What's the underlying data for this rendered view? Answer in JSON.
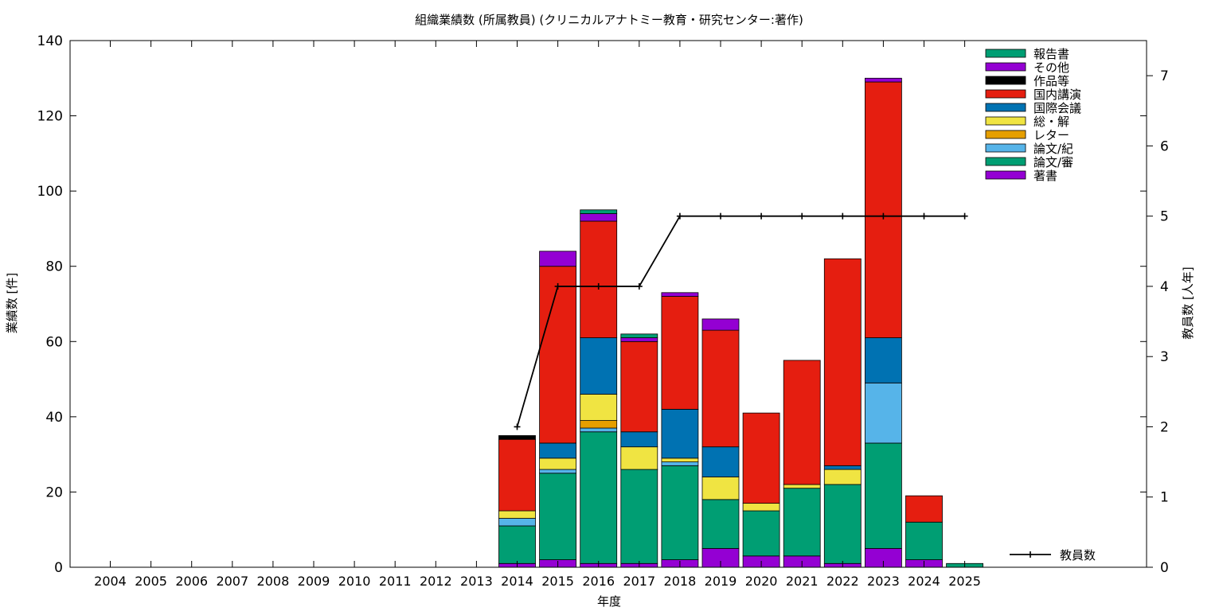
{
  "chart_data": {
    "type": "bar",
    "title": "組織業績数 (所属教員) (クリニカルアナトミー教育・研究センター:著作)",
    "xlabel": "年度",
    "ylabel": "業績数 [件]",
    "y2label": "教員数 [人年]",
    "ylim": [
      0,
      140
    ],
    "y2lim": [
      0,
      7.5
    ],
    "yticks": [
      "0",
      "20",
      "40",
      "60",
      "80",
      "100",
      "120",
      "140"
    ],
    "y2ticks": [
      "0",
      "1",
      "2",
      "3",
      "4",
      "5",
      "6",
      "7"
    ],
    "grid": false,
    "legend_position": "top-right",
    "categories": [
      "2004",
      "2005",
      "2006",
      "2007",
      "2008",
      "2009",
      "2010",
      "2011",
      "2012",
      "2013",
      "2014",
      "2015",
      "2016",
      "2017",
      "2018",
      "2019",
      "2020",
      "2021",
      "2022",
      "2023",
      "2024",
      "2025"
    ],
    "series": [
      {
        "name": "著書",
        "color": "#9400d3",
        "values": [
          0,
          0,
          0,
          0,
          0,
          0,
          0,
          0,
          0,
          0,
          1,
          2,
          1,
          1,
          2,
          5,
          3,
          3,
          1,
          5,
          2,
          0
        ]
      },
      {
        "name": "論文/審",
        "color": "#009e73",
        "values": [
          0,
          0,
          0,
          0,
          0,
          0,
          0,
          0,
          0,
          0,
          10,
          23,
          35,
          25,
          25,
          13,
          12,
          18,
          21,
          28,
          10,
          0
        ]
      },
      {
        "name": "論文/紀",
        "color": "#56b4e9",
        "values": [
          0,
          0,
          0,
          0,
          0,
          0,
          0,
          0,
          0,
          0,
          2,
          1,
          1,
          0,
          1,
          0,
          0,
          0,
          0,
          16,
          0,
          0
        ]
      },
      {
        "name": "レター",
        "color": "#e69f00",
        "values": [
          0,
          0,
          0,
          0,
          0,
          0,
          0,
          0,
          0,
          0,
          0,
          0,
          2,
          0,
          0,
          0,
          0,
          0,
          0,
          0,
          0,
          0
        ]
      },
      {
        "name": "総・解",
        "color": "#f0e442",
        "values": [
          0,
          0,
          0,
          0,
          0,
          0,
          0,
          0,
          0,
          0,
          2,
          3,
          7,
          6,
          1,
          6,
          2,
          1,
          4,
          0,
          0,
          0
        ]
      },
      {
        "name": "国際会議",
        "color": "#0072b2",
        "values": [
          0,
          0,
          0,
          0,
          0,
          0,
          0,
          0,
          0,
          0,
          0,
          4,
          15,
          4,
          13,
          8,
          0,
          0,
          1,
          12,
          0,
          0
        ]
      },
      {
        "name": "国内講演",
        "color": "#e51e10",
        "values": [
          0,
          0,
          0,
          0,
          0,
          0,
          0,
          0,
          0,
          0,
          19,
          47,
          31,
          24,
          30,
          31,
          24,
          33,
          55,
          68,
          7,
          0
        ]
      },
      {
        "name": "作品等",
        "color": "#000000",
        "values": [
          0,
          0,
          0,
          0,
          0,
          0,
          0,
          0,
          0,
          0,
          1,
          0,
          0,
          0,
          0,
          0,
          0,
          0,
          0,
          0,
          0,
          0
        ]
      },
      {
        "name": "その他",
        "color": "#9400d3",
        "values": [
          0,
          0,
          0,
          0,
          0,
          0,
          0,
          0,
          0,
          0,
          0,
          4,
          2,
          1,
          1,
          3,
          0,
          0,
          0,
          1,
          0,
          0
        ]
      },
      {
        "name": "報告書",
        "color": "#009e73",
        "values": [
          0,
          0,
          0,
          0,
          0,
          0,
          0,
          0,
          0,
          0,
          0,
          0,
          1,
          1,
          0,
          0,
          0,
          0,
          0,
          0,
          0,
          1
        ]
      }
    ],
    "line": {
      "name": "教員数",
      "color": "#000000",
      "x": [
        "2014",
        "2015",
        "2016",
        "2017",
        "2018",
        "2019",
        "2020",
        "2021",
        "2022",
        "2023",
        "2024",
        "2025"
      ],
      "values": [
        2,
        4,
        4,
        4,
        5,
        5,
        5,
        5,
        5,
        5,
        5,
        5
      ]
    }
  }
}
